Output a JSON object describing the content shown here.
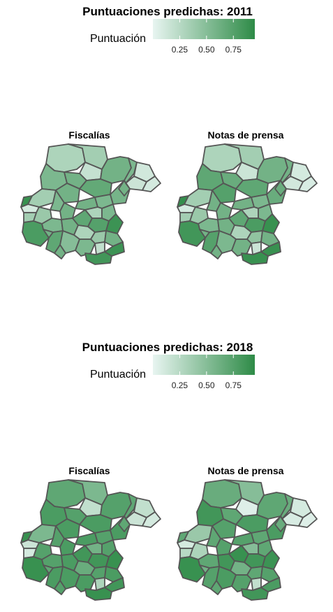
{
  "colors": {
    "low": "#e8f5f1",
    "high": "#2e8b47",
    "border": "#555555"
  },
  "chart_data": [
    {
      "type": "choropleth",
      "title": "Puntuaciones predichas: 2011",
      "legend": {
        "title": "Puntuación",
        "ticks": [
          0.25,
          0.5,
          0.75
        ],
        "tick_labels": [
          "0.25",
          "0.50",
          "0.75"
        ],
        "range": [
          0.0,
          0.95
        ]
      },
      "panels": [
        {
          "title": "Fiscalías",
          "values": [
            0.3,
            0.35,
            0.18,
            0.6,
            0.55,
            0.12,
            0.15,
            0.1,
            0.55,
            0.6,
            0.68,
            0.6,
            0.35,
            0.1,
            0.55,
            0.6,
            0.55,
            0.58,
            0.6,
            0.4,
            0.35,
            0.55,
            0.6,
            0.7,
            0.3,
            0.55,
            0.75,
            0.88,
            0.3,
            0.4,
            0.6,
            0.5,
            0.8,
            0.55,
            0.6,
            0.2,
            0.85,
            0.88,
            0.7,
            0.6,
            0.9,
            0.6
          ]
        },
        {
          "title": "Notas de prensa",
          "values": [
            0.3,
            0.35,
            0.15,
            0.6,
            0.6,
            0.1,
            0.12,
            0.08,
            0.7,
            0.65,
            0.7,
            0.75,
            0.35,
            0.1,
            0.6,
            0.6,
            0.55,
            0.65,
            0.6,
            0.4,
            0.35,
            0.55,
            0.6,
            0.7,
            0.3,
            0.55,
            0.8,
            0.9,
            0.3,
            0.45,
            0.6,
            0.55,
            0.85,
            0.6,
            0.6,
            0.15,
            0.9,
            0.9,
            0.75,
            0.6,
            0.92,
            0.65
          ]
        }
      ]
    },
    {
      "type": "choropleth",
      "title": "Puntuaciones predichas: 2018",
      "legend": {
        "title": "Puntuación",
        "ticks": [
          0.25,
          0.5,
          0.75
        ],
        "tick_labels": [
          "0.25",
          "0.50",
          "0.75"
        ],
        "range": [
          0.0,
          0.95
        ]
      },
      "panels": [
        {
          "title": "Fiscalías",
          "values": [
            0.7,
            0.55,
            0.2,
            0.75,
            0.7,
            0.2,
            0.15,
            0.1,
            0.8,
            0.75,
            0.8,
            0.8,
            0.55,
            0.15,
            0.75,
            0.8,
            0.75,
            0.8,
            0.8,
            0.75,
            0.1,
            0.75,
            0.8,
            0.85,
            0.6,
            0.75,
            0.85,
            0.9,
            0.65,
            0.75,
            0.8,
            0.8,
            0.9,
            0.8,
            0.75,
            0.3,
            0.9,
            0.85,
            0.8,
            0.7,
            0.9,
            0.7
          ]
        },
        {
          "title": "Notas de prensa",
          "values": [
            0.65,
            0.5,
            0.05,
            0.7,
            0.65,
            0.1,
            0.08,
            0.05,
            0.85,
            0.7,
            0.8,
            0.75,
            0.4,
            0.1,
            0.7,
            0.75,
            0.7,
            0.8,
            0.75,
            0.3,
            0.25,
            0.7,
            0.85,
            0.9,
            0.5,
            0.7,
            0.85,
            0.88,
            0.6,
            0.7,
            0.75,
            0.8,
            0.9,
            0.75,
            0.7,
            0.2,
            0.85,
            0.8,
            0.75,
            0.6,
            0.7,
            0.65
          ]
        }
      ]
    }
  ]
}
